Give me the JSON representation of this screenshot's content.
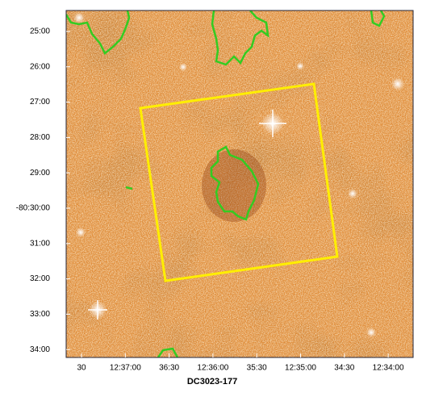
{
  "title": "DC3023-177",
  "x_tick_labels": [
    "30",
    "12:37:00",
    "36:30",
    "12:36:00",
    "35:30",
    "12:35:00",
    "34:30",
    "12:34:00"
  ],
  "y_tick_labels": [
    "25:00",
    "26:00",
    "27:00",
    "28:00",
    "29:00",
    "-80:30:00",
    "31:00",
    "32:00",
    "33:00",
    "34:00"
  ]
}
